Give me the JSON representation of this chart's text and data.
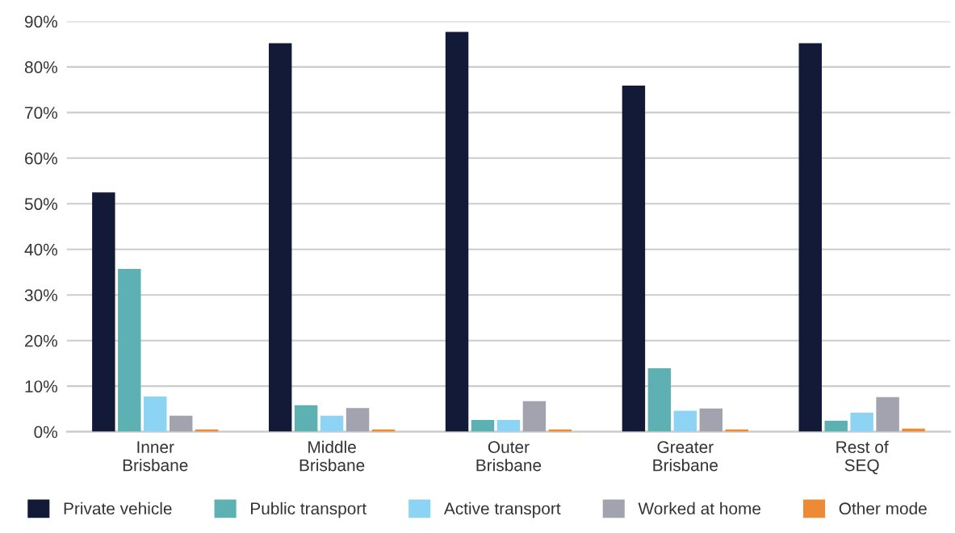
{
  "chart_data": {
    "type": "bar",
    "categories": [
      "Inner\nBrisbane",
      "Middle\nBrisbane",
      "Outer\nBrisbane",
      "Greater\nBrisbane",
      "Rest of\nSEQ"
    ],
    "series": [
      {
        "name": "Private vehicle",
        "color": "#131a38",
        "values": [
          52.5,
          85.2,
          87.7,
          75.9,
          85.2
        ]
      },
      {
        "name": "Public transport",
        "color": "#5db1b3",
        "values": [
          35.7,
          5.8,
          2.6,
          13.9,
          2.4
        ]
      },
      {
        "name": "Active transport",
        "color": "#8dd3f3",
        "values": [
          7.7,
          3.5,
          2.6,
          4.6,
          4.2
        ]
      },
      {
        "name": "Worked at home",
        "color": "#a2a3ae",
        "values": [
          3.5,
          5.2,
          6.7,
          5.1,
          7.6
        ]
      },
      {
        "name": "Other mode",
        "color": "#ee8a35",
        "values": [
          0.5,
          0.5,
          0.5,
          0.5,
          0.7
        ]
      }
    ],
    "ylim": [
      0,
      90
    ],
    "yticks": [
      {
        "value": 0,
        "label": "0%"
      },
      {
        "value": 10,
        "label": "10%"
      },
      {
        "value": 20,
        "label": "20%"
      },
      {
        "value": 30,
        "label": "30%"
      },
      {
        "value": 40,
        "label": "40%"
      },
      {
        "value": 50,
        "label": "50%"
      },
      {
        "value": 60,
        "label": "60%"
      },
      {
        "value": 70,
        "label": "70%"
      },
      {
        "value": 80,
        "label": "80%"
      },
      {
        "value": 90,
        "label": "90%"
      }
    ],
    "grid": "y",
    "legend": "bottom"
  }
}
